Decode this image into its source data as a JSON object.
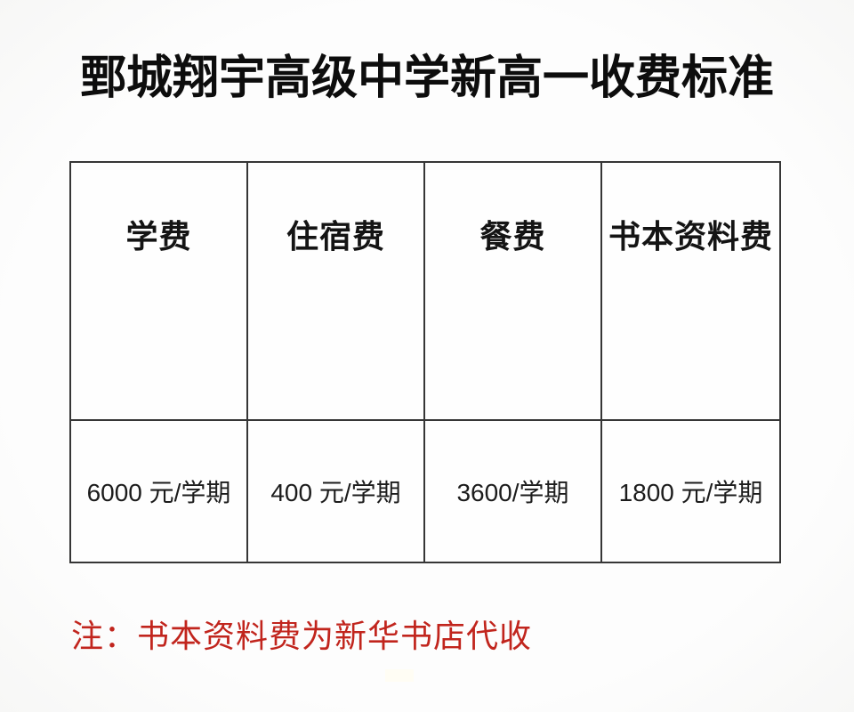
{
  "page": {
    "background_color": "#fdfdfd",
    "border_color": "#363636",
    "note_color": "#c1251d"
  },
  "title": {
    "text": "鄄城翔宇高级中学新高一收费标准"
  },
  "table": {
    "columns": [
      {
        "header": "学费",
        "value": "6000 元/学期"
      },
      {
        "header": "住宿费",
        "value": "400 元/学期"
      },
      {
        "header": "餐费",
        "value": "3600/学期"
      },
      {
        "header": "书本资料费",
        "value": "1800 元/学期"
      }
    ]
  },
  "note": {
    "text": "注：书本资料费为新华书店代收"
  }
}
